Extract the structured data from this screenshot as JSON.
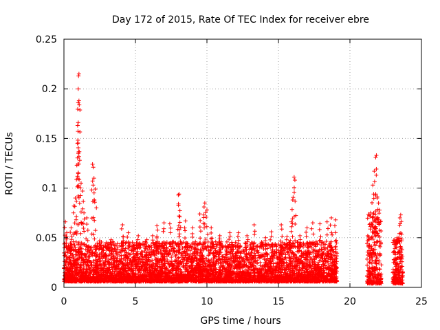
{
  "chart_data": {
    "type": "scatter",
    "title": "Day 172 of 2015, Rate Of TEC Index for receiver ebre",
    "xlabel": "GPS time / hours",
    "ylabel": "ROTI / TECUs",
    "xlim": [
      0,
      25
    ],
    "ylim": [
      0,
      0.25
    ],
    "xticks": [
      "0",
      "5",
      "10",
      "15",
      "20",
      "25"
    ],
    "yticks": [
      "0",
      "0.05",
      "0.1",
      "0.15",
      "0.2",
      "0.25"
    ],
    "grid": true,
    "marker": "+",
    "color": "#ff0000",
    "series": [
      {
        "segments": [
          {
            "x0": 0.0,
            "x1": 19.1,
            "base": 0.012,
            "typical": 0.025
          },
          {
            "x0": 21.2,
            "x1": 22.2,
            "base": 0.01,
            "typical": 0.045
          },
          {
            "x0": 23.0,
            "x1": 23.7,
            "base": 0.01,
            "typical": 0.03
          }
        ],
        "peaks": [
          [
            0.1,
            0.066
          ],
          [
            0.2,
            0.055
          ],
          [
            0.5,
            0.06
          ],
          [
            0.7,
            0.082
          ],
          [
            0.8,
            0.09
          ],
          [
            0.9,
            0.123
          ],
          [
            0.95,
            0.145
          ],
          [
            1.0,
            0.2
          ],
          [
            1.02,
            0.213
          ],
          [
            1.05,
            0.215
          ],
          [
            1.0,
            0.186
          ],
          [
            1.05,
            0.188
          ],
          [
            1.0,
            0.166
          ],
          [
            1.1,
            0.128
          ],
          [
            1.2,
            0.105
          ],
          [
            1.3,
            0.097
          ],
          [
            1.4,
            0.075
          ],
          [
            1.6,
            0.07
          ],
          [
            2.0,
            0.124
          ],
          [
            2.05,
            0.121
          ],
          [
            2.1,
            0.11
          ],
          [
            2.2,
            0.099
          ],
          [
            2.5,
            0.047
          ],
          [
            3.3,
            0.048
          ],
          [
            4.1,
            0.063
          ],
          [
            4.5,
            0.055
          ],
          [
            5.2,
            0.052
          ],
          [
            5.8,
            0.048
          ],
          [
            6.2,
            0.052
          ],
          [
            6.5,
            0.062
          ],
          [
            7.0,
            0.065
          ],
          [
            7.4,
            0.064
          ],
          [
            8.0,
            0.093
          ],
          [
            8.05,
            0.094
          ],
          [
            8.1,
            0.071
          ],
          [
            8.5,
            0.067
          ],
          [
            9.0,
            0.06
          ],
          [
            9.5,
            0.074
          ],
          [
            9.8,
            0.081
          ],
          [
            9.85,
            0.085
          ],
          [
            10.0,
            0.078
          ],
          [
            10.3,
            0.06
          ],
          [
            10.9,
            0.052
          ],
          [
            11.6,
            0.055
          ],
          [
            12.2,
            0.055
          ],
          [
            12.8,
            0.052
          ],
          [
            13.3,
            0.063
          ],
          [
            14.1,
            0.05
          ],
          [
            14.5,
            0.056
          ],
          [
            15.2,
            0.063
          ],
          [
            15.6,
            0.051
          ],
          [
            15.9,
            0.066
          ],
          [
            16.0,
            0.088
          ],
          [
            16.1,
            0.111
          ],
          [
            16.15,
            0.108
          ],
          [
            16.5,
            0.052
          ],
          [
            17.0,
            0.06
          ],
          [
            17.4,
            0.065
          ],
          [
            17.9,
            0.064
          ],
          [
            18.4,
            0.066
          ],
          [
            18.7,
            0.07
          ],
          [
            19.0,
            0.068
          ],
          [
            21.6,
            0.103
          ],
          [
            21.7,
            0.117
          ],
          [
            21.8,
            0.131
          ],
          [
            21.85,
            0.133
          ],
          [
            21.9,
            0.09
          ],
          [
            22.0,
            0.085
          ],
          [
            23.5,
            0.07
          ],
          [
            23.55,
            0.073
          ],
          [
            23.3,
            0.05
          ]
        ]
      }
    ]
  }
}
